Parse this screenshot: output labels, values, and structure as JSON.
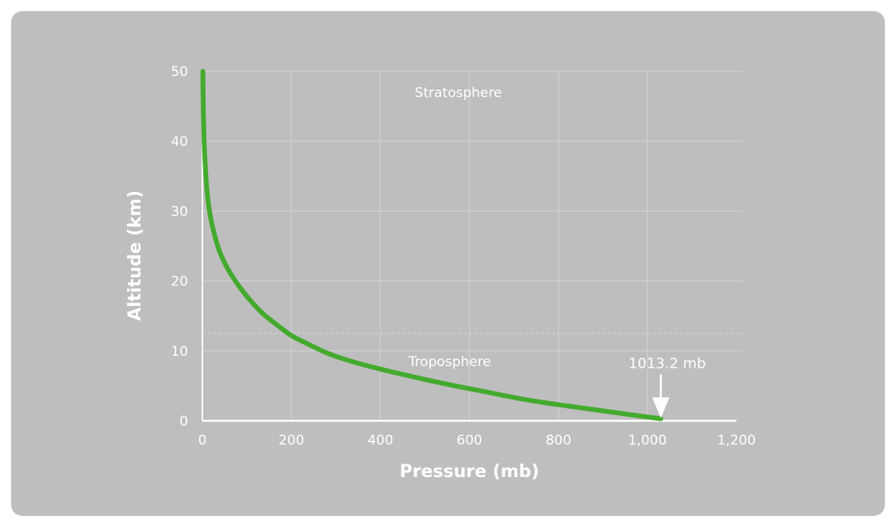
{
  "chart_data": {
    "type": "line",
    "xlabel": "Pressure (mb)",
    "ylabel": "Altitude (km)",
    "xlim": [
      0,
      1200
    ],
    "ylim": [
      0,
      50
    ],
    "x_ticks": [
      0,
      200,
      400,
      600,
      800,
      1000,
      1200
    ],
    "x_tick_labels": [
      "0",
      "200",
      "400",
      "600",
      "800",
      "1,000",
      "1,200"
    ],
    "y_ticks": [
      0,
      10,
      20,
      30,
      40,
      50
    ],
    "y_tick_labels": [
      "0",
      "10",
      "20",
      "30",
      "40",
      "50"
    ],
    "grid": true,
    "tropopause_altitude": 12.5,
    "line_color": "#44aa2e",
    "series": [
      {
        "x": [
          1,
          2,
          4,
          6,
          9,
          12,
          16,
          22,
          30,
          40,
          55,
          70,
          90,
          115,
          140,
          170,
          200,
          240,
          280,
          330,
          400,
          480,
          560,
          640,
          720,
          800,
          880,
          960,
          1030
        ],
        "y": [
          50,
          45,
          40,
          37,
          34,
          32,
          30,
          28,
          26,
          24,
          22,
          20.4,
          18.6,
          16.7,
          15.1,
          13.6,
          12.2,
          10.9,
          9.7,
          8.6,
          7.4,
          6.2,
          5.1,
          4.1,
          3.1,
          2.3,
          1.6,
          0.9,
          0.3
        ]
      }
    ],
    "annotations": [
      {
        "text": "Stratosphere",
        "x": 600,
        "y": 47
      },
      {
        "text": "Troposphere",
        "x": 620,
        "y": 8.5
      },
      {
        "text": "1013.2 mb",
        "x": 1030,
        "y": 0.3
      }
    ]
  }
}
